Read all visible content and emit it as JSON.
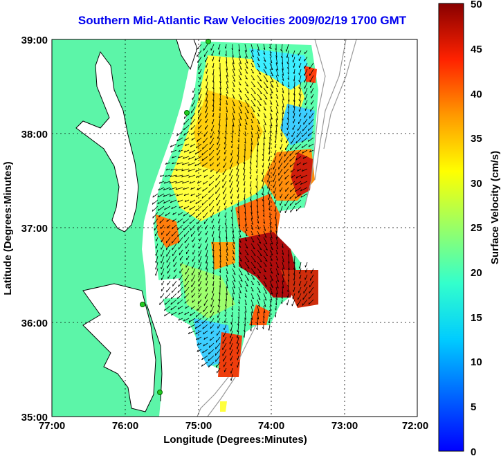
{
  "title": "Southern Mid-Atlantic Raw Velocities 2009/02/19 1700 GMT",
  "x_axis": {
    "label": "Longitude (Degrees:Minutes)",
    "ticks": [
      "77:00",
      "76:00",
      "75:00",
      "74:00",
      "73:00",
      "72:00"
    ],
    "range": [
      -77,
      -72
    ]
  },
  "y_axis": {
    "label": "Latitude (Degrees:Minutes)",
    "ticks": [
      "35:00",
      "36:00",
      "37:00",
      "38:00",
      "39:00"
    ],
    "range": [
      35,
      39
    ]
  },
  "colorbar": {
    "label": "Surface Velocity (cm/s)",
    "ticks": [
      "0",
      "5",
      "10",
      "15",
      "20",
      "25",
      "30",
      "35",
      "40",
      "45",
      "50"
    ],
    "range": [
      0,
      50
    ],
    "colormap": "jet"
  },
  "grid": "dotted",
  "colors": {
    "land": "#5cf5a8",
    "title": "#0000ee",
    "coastline": "#000000",
    "bathymetry": "#999999",
    "station": "#22cc22",
    "vector": "#000000"
  }
}
